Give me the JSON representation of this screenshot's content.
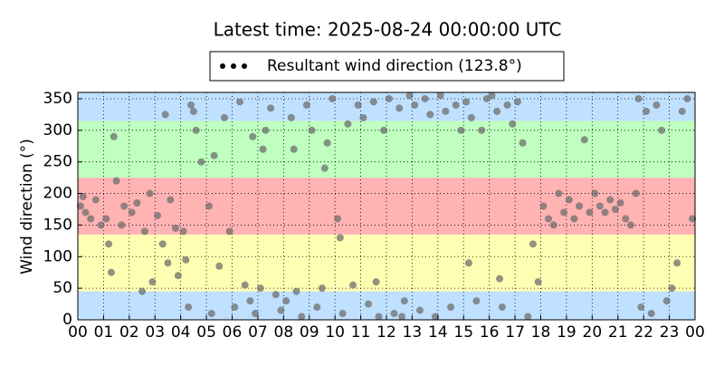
{
  "chart_data": {
    "type": "scatter",
    "title": "Latest time: 2025-08-24 00:00:00 UTC",
    "ylabel": "Wind direction (°)",
    "xlim": [
      0,
      24
    ],
    "xticks": [
      {
        "value": 0,
        "label": "00"
      },
      {
        "value": 1,
        "label": "01"
      },
      {
        "value": 2,
        "label": "02"
      },
      {
        "value": 3,
        "label": "03"
      },
      {
        "value": 4,
        "label": "04"
      },
      {
        "value": 5,
        "label": "05"
      },
      {
        "value": 6,
        "label": "06"
      },
      {
        "value": 7,
        "label": "07"
      },
      {
        "value": 8,
        "label": "08"
      },
      {
        "value": 9,
        "label": "09"
      },
      {
        "value": 10,
        "label": "10"
      },
      {
        "value": 11,
        "label": "11"
      },
      {
        "value": 12,
        "label": "12"
      },
      {
        "value": 13,
        "label": "13"
      },
      {
        "value": 14,
        "label": "14"
      },
      {
        "value": 15,
        "label": "15"
      },
      {
        "value": 16,
        "label": "16"
      },
      {
        "value": 17,
        "label": "17"
      },
      {
        "value": 18,
        "label": "18"
      },
      {
        "value": 19,
        "label": "19"
      },
      {
        "value": 20,
        "label": "20"
      },
      {
        "value": 21,
        "label": "21"
      },
      {
        "value": 22,
        "label": "22"
      },
      {
        "value": 23,
        "label": "23"
      },
      {
        "value": 24,
        "label": "00"
      }
    ],
    "ylim": [
      0,
      360
    ],
    "yticks": [
      0,
      50,
      100,
      150,
      200,
      250,
      300,
      350
    ],
    "grid": true,
    "legend": "upper center",
    "bands": [
      {
        "from": 0,
        "to": 45,
        "color": "#bfe0ff"
      },
      {
        "from": 45,
        "to": 135,
        "color": "#ffffb3"
      },
      {
        "from": 135,
        "to": 225,
        "color": "#ffb3b3"
      },
      {
        "from": 225,
        "to": 315,
        "color": "#bfffbf"
      },
      {
        "from": 315,
        "to": 360,
        "color": "#bfe0ff"
      }
    ],
    "series": [
      {
        "name": "Resultant wind direction (123.8°)",
        "color": "#6e6e6e",
        "x": [
          0.1,
          0.3,
          0.5,
          0.7,
          0.9,
          0.2,
          1.1,
          1.3,
          1.4,
          1.5,
          1.7,
          1.8,
          1.2,
          2.1,
          2.3,
          2.5,
          2.6,
          2.8,
          2.9,
          3.1,
          3.3,
          3.4,
          3.6,
          3.8,
          3.5,
          3.9,
          4.1,
          4.3,
          4.4,
          4.6,
          4.8,
          4.2,
          4.5,
          5.1,
          5.2,
          5.3,
          5.5,
          5.7,
          5.9,
          6.1,
          6.3,
          6.5,
          6.7,
          6.8,
          6.9,
          7.1,
          7.3,
          7.5,
          7.7,
          7.9,
          7.2,
          8.1,
          8.3,
          8.5,
          8.7,
          8.9,
          8.4,
          9.1,
          9.3,
          9.5,
          9.7,
          9.9,
          9.6,
          10.1,
          10.3,
          10.5,
          10.7,
          10.9,
          10.2,
          11.1,
          11.3,
          11.5,
          11.7,
          11.9,
          11.6,
          12.1,
          12.3,
          12.5,
          12.7,
          12.9,
          12.6,
          13.1,
          13.3,
          13.5,
          13.7,
          13.9,
          14.1,
          14.3,
          14.5,
          14.7,
          14.9,
          15.1,
          15.3,
          15.5,
          15.7,
          15.9,
          15.2,
          16.1,
          16.3,
          16.5,
          16.7,
          16.9,
          16.4,
          17.1,
          17.3,
          17.5,
          17.7,
          17.9,
          18.1,
          18.3,
          18.5,
          18.7,
          18.9,
          19.1,
          19.3,
          19.5,
          19.7,
          19.9,
          20.1,
          20.3,
          20.5,
          20.7,
          20.9,
          21.1,
          21.3,
          21.5,
          21.7,
          21.9,
          21.8,
          22.1,
          22.3,
          22.5,
          22.7,
          22.9,
          23.1,
          23.3,
          23.5,
          23.7,
          23.9
        ],
        "values": [
          180,
          170,
          160,
          190,
          150,
          195,
          160,
          75,
          290,
          220,
          150,
          180,
          120,
          170,
          185,
          45,
          140,
          200,
          60,
          165,
          120,
          325,
          190,
          145,
          90,
          70,
          140,
          20,
          340,
          300,
          250,
          95,
          330,
          180,
          10,
          260,
          85,
          320,
          140,
          20,
          345,
          55,
          30,
          290,
          10,
          50,
          300,
          335,
          40,
          15,
          270,
          30,
          320,
          45,
          5,
          340,
          270,
          300,
          20,
          50,
          280,
          350,
          240,
          160,
          10,
          310,
          55,
          340,
          130,
          320,
          25,
          345,
          5,
          300,
          60,
          350,
          10,
          335,
          30,
          355,
          5,
          340,
          15,
          350,
          325,
          5,
          355,
          330,
          20,
          340,
          300,
          345,
          320,
          30,
          300,
          350,
          90,
          355,
          330,
          20,
          340,
          310,
          65,
          345,
          280,
          5,
          120,
          60,
          180,
          160,
          150,
          200,
          170,
          190,
          160,
          180,
          285,
          170,
          200,
          180,
          170,
          190,
          175,
          185,
          160,
          150,
          200,
          20,
          350,
          330,
          10,
          340,
          300,
          30,
          50,
          90,
          330,
          350,
          160
        ]
      }
    ]
  }
}
